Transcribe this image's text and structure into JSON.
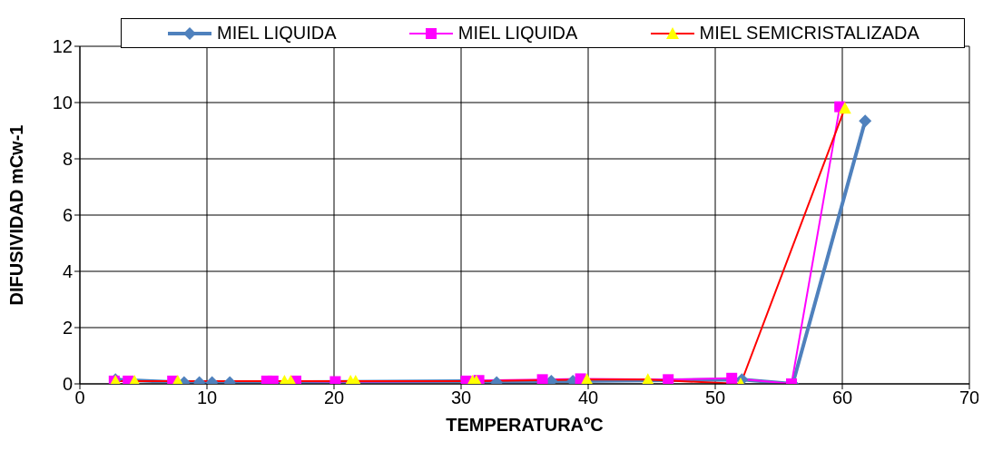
{
  "chart_data": {
    "type": "line",
    "xlabel": "TEMPERATURAºC",
    "ylabel": "DIFUSIVIDAD mCw-1",
    "xlim": [
      0,
      70
    ],
    "xticks": [
      0,
      10,
      20,
      30,
      40,
      50,
      60,
      70
    ],
    "ylim": [
      0,
      12
    ],
    "yticks": [
      0,
      2,
      4,
      6,
      8,
      10,
      12
    ],
    "grid": true,
    "legend": "top right",
    "series": [
      {
        "name": "MIEL LIQUIDA",
        "color": "#4f81bd",
        "marker": "diamond",
        "x": [
          2.8,
          8.2,
          9.4,
          10.4,
          11.8,
          31.1,
          32.8,
          37.1,
          38.8,
          52.1,
          56.1,
          61.8
        ],
        "values": [
          0.15,
          0.05,
          0.05,
          0.05,
          0.05,
          0.1,
          0.05,
          0.1,
          0.1,
          0.15,
          0,
          9.35
        ]
      },
      {
        "name": "MIEL LIQUIDA",
        "color": "#ff00ff",
        "marker": "square",
        "x": [
          2.7,
          3.8,
          7.3,
          14.7,
          15.2,
          17.0,
          20.1,
          30.4,
          31.4,
          36.4,
          39.4,
          46.3,
          51.3,
          56.0,
          59.8
        ],
        "values": [
          0.1,
          0.1,
          0.1,
          0.1,
          0.1,
          0.1,
          0.08,
          0.1,
          0.12,
          0.15,
          0.18,
          0.15,
          0.2,
          0,
          9.85
        ]
      },
      {
        "name": "MIEL SEMICRISTALIZADA",
        "color": "#ff0000",
        "marker": "triangle",
        "x": [
          2.8,
          4.3,
          7.7,
          16.1,
          16.6,
          21.3,
          21.7,
          30.9,
          31.2,
          39.9,
          44.7,
          52.0,
          60.2
        ],
        "values": [
          0.1,
          0.1,
          0.1,
          0.1,
          0.1,
          0.1,
          0.1,
          0.1,
          0.1,
          0.15,
          0.15,
          0.0,
          9.8
        ]
      }
    ]
  }
}
